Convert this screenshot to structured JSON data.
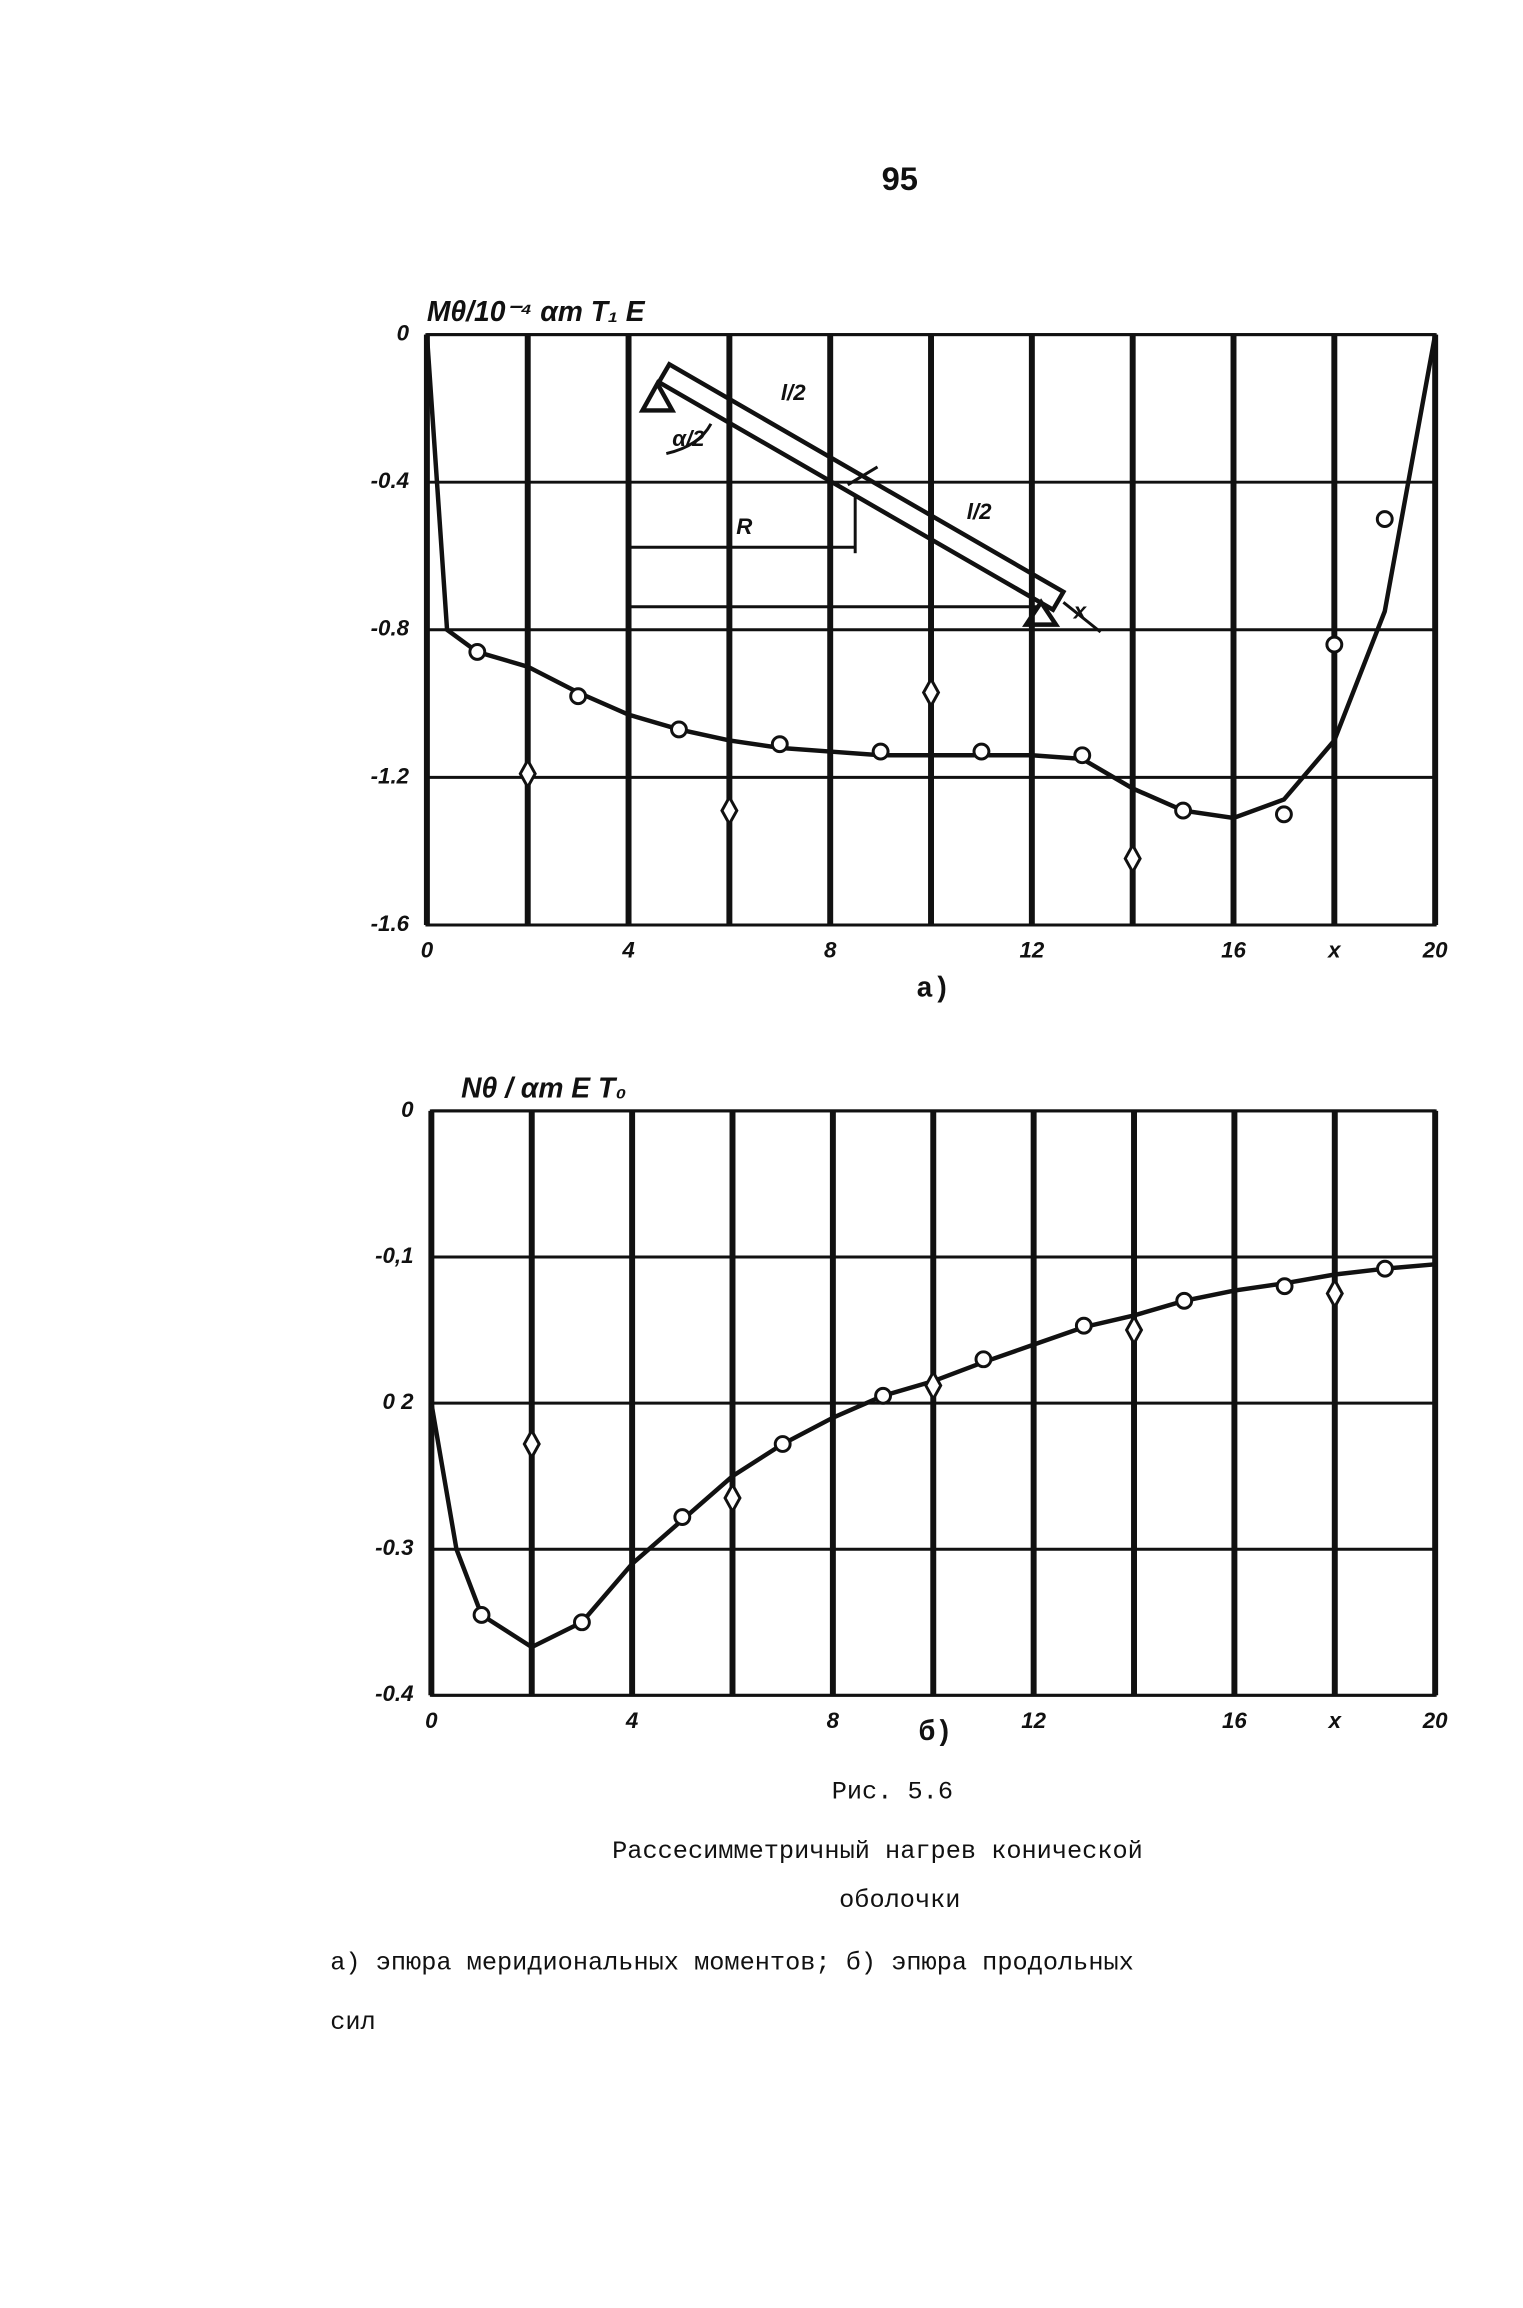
{
  "page_number": "95",
  "chart_data": [
    {
      "type": "line",
      "title": "Mθ/10⁻⁴ αт T₁ E",
      "label": "а)",
      "xlabel": "x",
      "xlim": [
        0,
        20
      ],
      "xticks": [
        0,
        4,
        8,
        12,
        16,
        20
      ],
      "minor_xticks": [
        2,
        6,
        10,
        14,
        18
      ],
      "ylim": [
        -1.6,
        0
      ],
      "yticks": [
        0,
        -0.4,
        -0.8,
        -1.2,
        -1.6
      ],
      "grid": true,
      "series": [
        {
          "kind": "line",
          "color": "#111",
          "x": [
            0,
            0.2,
            0.4,
            1,
            2,
            3,
            4,
            5,
            6,
            7,
            8,
            9,
            10,
            11,
            12,
            13,
            14,
            15,
            16,
            17,
            18,
            19,
            20
          ],
          "values": [
            0,
            -0.4,
            -0.8,
            -0.86,
            -0.9,
            -0.97,
            -1.03,
            -1.07,
            -1.1,
            -1.12,
            -1.13,
            -1.14,
            -1.14,
            -1.14,
            -1.14,
            -1.15,
            -1.23,
            -1.29,
            -1.31,
            -1.26,
            -1.1,
            -0.75,
            0
          ]
        },
        {
          "kind": "circle",
          "color": "#111",
          "x": [
            1,
            3,
            5,
            7,
            9,
            11,
            13,
            15,
            17,
            18,
            19
          ],
          "values": [
            -0.86,
            -0.98,
            -1.07,
            -1.11,
            -1.13,
            -1.13,
            -1.14,
            -1.29,
            -1.3,
            -0.84,
            -0.5
          ]
        },
        {
          "kind": "diamond",
          "color": "#111",
          "x": [
            2,
            6,
            10,
            14
          ],
          "values": [
            -1.19,
            -1.29,
            -0.97,
            -1.42
          ]
        }
      ],
      "inset": {
        "labels": [
          "l/2",
          "l/2",
          "R",
          "x",
          "α/2"
        ]
      }
    },
    {
      "type": "line",
      "title": "Nθ / αт E T₀",
      "label": "б)",
      "xlabel": "x",
      "xlim": [
        0,
        20
      ],
      "xticks": [
        0,
        4,
        8,
        12,
        16,
        20
      ],
      "minor_xticks": [
        2,
        6,
        10,
        14,
        18
      ],
      "ylim": [
        -0.4,
        0
      ],
      "yticks": [
        0,
        {
          "value": -0.1,
          "label": "-0,1"
        },
        {
          "value": -0.2,
          "label": "0 2"
        },
        -0.3,
        -0.4
      ],
      "grid": true,
      "series": [
        {
          "kind": "line",
          "color": "#111",
          "x": [
            0,
            0.5,
            1,
            2,
            3,
            4,
            5,
            6,
            7,
            8,
            9,
            10,
            11,
            12,
            13,
            14,
            15,
            16,
            17,
            18,
            19,
            20
          ],
          "values": [
            -0.2,
            -0.3,
            -0.345,
            -0.367,
            -0.35,
            -0.31,
            -0.28,
            -0.25,
            -0.228,
            -0.21,
            -0.195,
            -0.185,
            -0.172,
            -0.16,
            -0.148,
            -0.14,
            -0.13,
            -0.123,
            -0.118,
            -0.112,
            -0.108,
            -0.105
          ]
        },
        {
          "kind": "circle",
          "color": "#111",
          "x": [
            1,
            3,
            5,
            7,
            9,
            11,
            13,
            15,
            17,
            19
          ],
          "values": [
            -0.345,
            -0.35,
            -0.278,
            -0.228,
            -0.195,
            -0.17,
            -0.147,
            -0.13,
            -0.12,
            -0.108
          ]
        },
        {
          "kind": "diamond",
          "color": "#111",
          "x": [
            2,
            6,
            10,
            14,
            18
          ],
          "values": [
            -0.228,
            -0.265,
            -0.188,
            -0.15,
            -0.125
          ]
        }
      ]
    }
  ],
  "caption": {
    "figure": "Рис. 5.6",
    "title_lines": [
      "Рассесимметричный нагрев конической",
      "оболочки"
    ],
    "text_lines": [
      "а)  эпюра меридиональных моментов; б)  эпюра продольных",
      "сил"
    ]
  }
}
